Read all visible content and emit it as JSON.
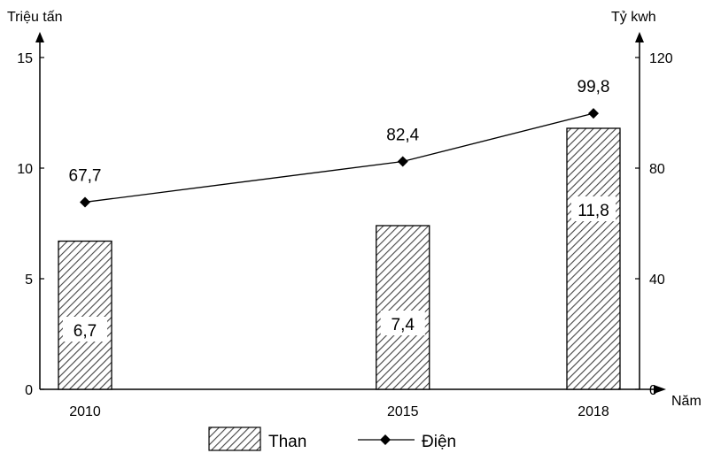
{
  "chart_data": {
    "type": "bar+line",
    "categories": [
      "2010",
      "2015",
      "2018"
    ],
    "x": [
      2010,
      2015,
      2018
    ],
    "series": [
      {
        "name": "Than",
        "type": "bar",
        "axis": "left",
        "values": [
          6.7,
          7.4,
          11.8
        ],
        "labels": [
          "6,7",
          "7,4",
          "11,8"
        ]
      },
      {
        "name": "Điện",
        "type": "line",
        "axis": "right",
        "values": [
          67.7,
          82.4,
          99.8
        ],
        "labels": [
          "67,7",
          "82,4",
          "99,8"
        ]
      }
    ],
    "ylabel_left": "Triệu tấn",
    "ylabel_right": "Tỷ kwh",
    "xlabel": "Năm",
    "ylim_left": [
      0,
      15
    ],
    "ylim_right": [
      0,
      120
    ],
    "yticks_left": [
      "0",
      "5",
      "10",
      "15"
    ],
    "yticks_right": [
      "0",
      "40",
      "80",
      "120"
    ],
    "grid": false,
    "legend": "bottom",
    "bar_pattern": "diagonal-hatch"
  }
}
